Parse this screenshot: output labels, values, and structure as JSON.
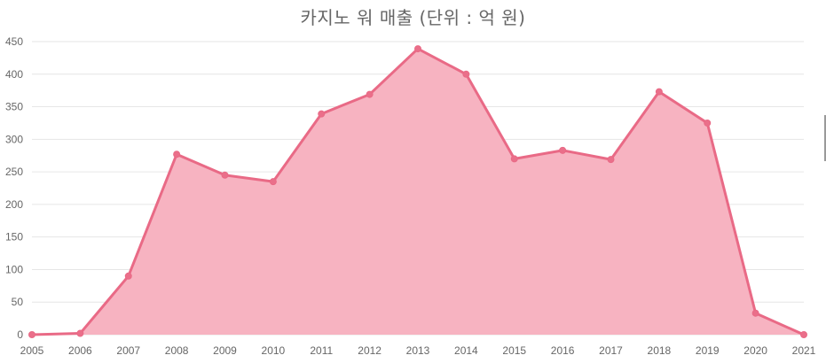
{
  "chart_data": {
    "type": "area",
    "title": "카지노 워 매출 (단위 : 억 원)",
    "xlabel": "",
    "ylabel": "",
    "x": [
      "2005",
      "2006",
      "2007",
      "2008",
      "2009",
      "2010",
      "2011",
      "2012",
      "2013",
      "2014",
      "2015",
      "2016",
      "2017",
      "2018",
      "2019",
      "2020",
      "2021"
    ],
    "series": [
      {
        "values": [
          0,
          2,
          90,
          277,
          245,
          235,
          339,
          369,
          439,
          400,
          270,
          283,
          269,
          373,
          325,
          33,
          0
        ]
      }
    ],
    "ylim": [
      0,
      450
    ],
    "yticks": [
      0,
      50,
      100,
      150,
      200,
      250,
      300,
      350,
      400,
      450
    ],
    "grid": true,
    "legend": "none",
    "colors": {
      "line": "#e96a86",
      "fill": "#f7b3c1",
      "point": "#ea6f8a",
      "grid": "#e6e6e6",
      "text": "#666666"
    }
  }
}
